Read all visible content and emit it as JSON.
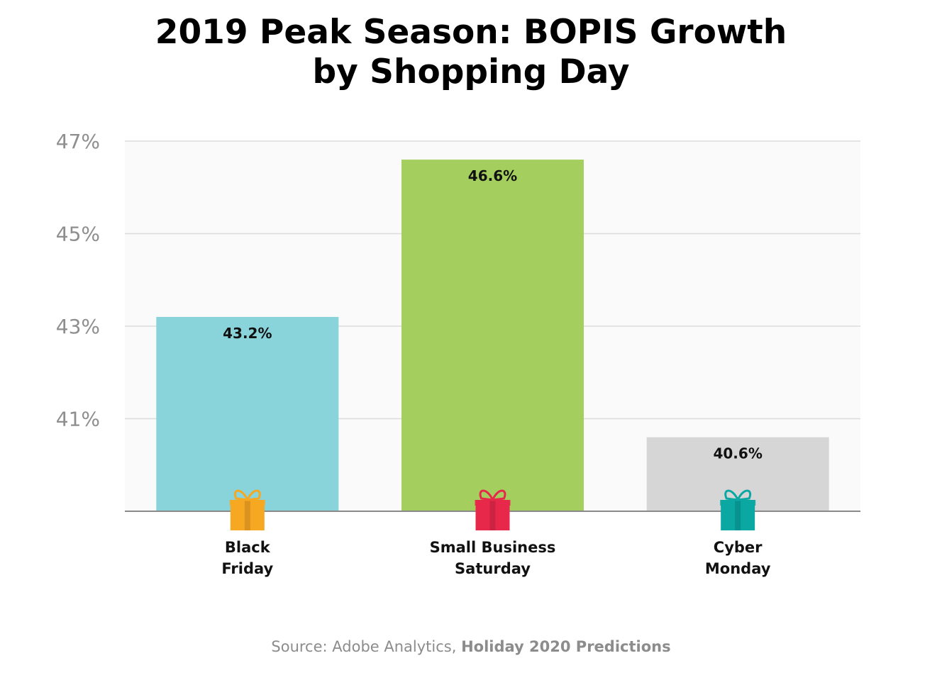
{
  "chart_data": {
    "type": "bar",
    "title_lines": [
      "2019 Peak Season: BOPIS Growth",
      "by Shopping Day"
    ],
    "categories": [
      [
        "Black",
        "Friday"
      ],
      [
        "Small Business",
        "Saturday"
      ],
      [
        "Cyber",
        "Monday"
      ]
    ],
    "values": [
      43.2,
      46.6,
      40.6
    ],
    "value_labels": [
      "43.2%",
      "46.6%",
      "40.6%"
    ],
    "bar_colors": [
      "#89d3da",
      "#a4cf5e",
      "#d6d6d6"
    ],
    "gift_icon_colors": [
      "#f7a823",
      "#e8284a",
      "#0aa7a3"
    ],
    "ylim": [
      39,
      47
    ],
    "yticks": [
      41,
      43,
      45,
      47
    ],
    "ytick_labels": [
      "41%",
      "43%",
      "45%",
      "47%"
    ],
    "grid": true,
    "xlabel": "",
    "ylabel": ""
  },
  "source": {
    "prefix": "Source: Adobe Analytics, ",
    "bold": "Holiday 2020 Predictions"
  }
}
